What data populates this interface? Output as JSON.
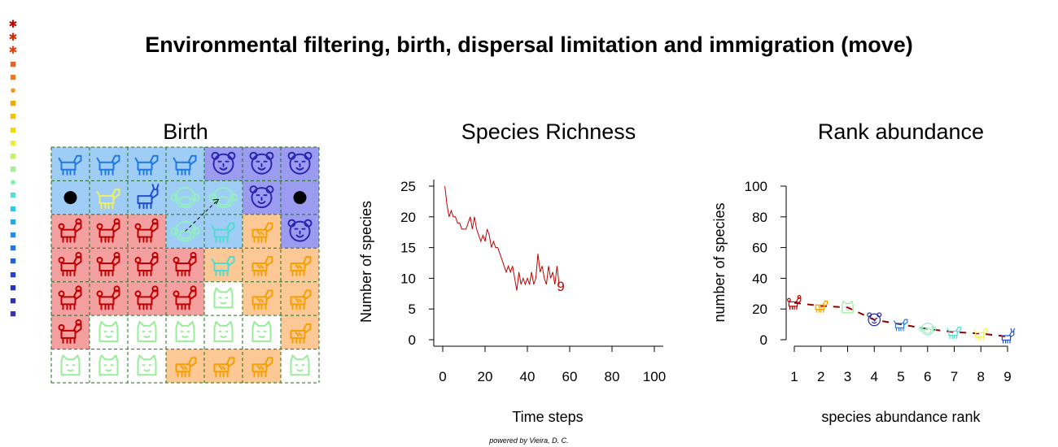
{
  "title": "Environmental filtering, birth, dispersal limitation and immigration (move)",
  "footer": "powered by Vieira, D. C.",
  "legend_strip": [
    {
      "glyph": "✱",
      "color": "#c00000",
      "icon": "poodle-icon"
    },
    {
      "glyph": "✱",
      "color": "#d42a00",
      "icon": "poodle-icon"
    },
    {
      "glyph": "✱",
      "color": "#e04010",
      "icon": "fox-icon"
    },
    {
      "glyph": "■",
      "color": "#ee6020",
      "icon": "tiger-icon"
    },
    {
      "glyph": "■",
      "color": "#f07a20",
      "icon": "tiger-icon"
    },
    {
      "glyph": "●",
      "color": "#f59a20",
      "icon": "monkey-icon"
    },
    {
      "glyph": "■",
      "color": "#f5a800",
      "icon": "cow-icon"
    },
    {
      "glyph": "■",
      "color": "#f7c000",
      "icon": "cat-icon"
    },
    {
      "glyph": "■",
      "color": "#f5d800",
      "icon": "rabbit-icon"
    },
    {
      "glyph": "■",
      "color": "#e8ee40",
      "icon": "dog-icon"
    },
    {
      "glyph": "■",
      "color": "#c8f060",
      "icon": "cat-icon"
    },
    {
      "glyph": "■",
      "color": "#a0f090",
      "icon": "cat-icon"
    },
    {
      "glyph": "●",
      "color": "#80f0b0",
      "icon": "monkey-icon"
    },
    {
      "glyph": "■",
      "color": "#50e0d0",
      "icon": "horse-icon"
    },
    {
      "glyph": "■",
      "color": "#30c8f0",
      "icon": "horse-icon"
    },
    {
      "glyph": "■",
      "color": "#20a8f0",
      "icon": "dog-icon"
    },
    {
      "glyph": "■",
      "color": "#2090f0",
      "icon": "wolf-icon"
    },
    {
      "glyph": "■",
      "color": "#1e78e8",
      "icon": "horse-icon"
    },
    {
      "glyph": "■",
      "color": "#2060e0",
      "icon": "horse-icon"
    },
    {
      "glyph": "■",
      "color": "#2840d0",
      "icon": "dog-icon"
    },
    {
      "glyph": "■",
      "color": "#2a30c0",
      "icon": "tiger-icon"
    },
    {
      "glyph": "■",
      "color": "#3030b0",
      "icon": "horse-icon"
    },
    {
      "glyph": "■",
      "color": "#3a30b0",
      "icon": "tiger-icon"
    }
  ],
  "grid": {
    "title": "Birth",
    "colors": {
      "blue": "#a0cdf5",
      "purple": "#9b9bef",
      "red": "#f5a0a0",
      "orange": "#fbc896",
      "white": "#ffffff",
      "border": "#1f6e1f"
    },
    "species_colors": {
      "horse": "#1f7ae0",
      "tiger": "#2828b0",
      "poodle": "#c00000",
      "cat": "#98ee98",
      "cow": "#f5a000",
      "dog": "#f0f060",
      "goat": "#2050d0",
      "monkey": "#90f0c0",
      "rabbit": "#50dcd0",
      "dot": "#000000"
    },
    "cells": [
      [
        {
          "bg": "blue",
          "sp": "horse"
        },
        {
          "bg": "blue",
          "sp": "horse"
        },
        {
          "bg": "blue",
          "sp": "horse"
        },
        {
          "bg": "blue",
          "sp": "horse"
        },
        {
          "bg": "purple",
          "sp": "tiger"
        },
        {
          "bg": "purple",
          "sp": "tiger"
        },
        {
          "bg": "purple",
          "sp": "tiger"
        }
      ],
      [
        {
          "bg": "blue",
          "sp": "dot"
        },
        {
          "bg": "blue",
          "sp": "dog"
        },
        {
          "bg": "blue",
          "sp": "goat"
        },
        {
          "bg": "blue",
          "sp": "monkey"
        },
        {
          "bg": "blue",
          "sp": "monkey"
        },
        {
          "bg": "purple",
          "sp": "tiger"
        },
        {
          "bg": "purple",
          "sp": "dot"
        }
      ],
      [
        {
          "bg": "red",
          "sp": "poodle"
        },
        {
          "bg": "red",
          "sp": "poodle"
        },
        {
          "bg": "red",
          "sp": "poodle"
        },
        {
          "bg": "blue",
          "sp": "monkey"
        },
        {
          "bg": "blue",
          "sp": "rabbit"
        },
        {
          "bg": "orange",
          "sp": "cow"
        },
        {
          "bg": "purple",
          "sp": "tiger"
        }
      ],
      [
        {
          "bg": "red",
          "sp": "poodle"
        },
        {
          "bg": "red",
          "sp": "poodle"
        },
        {
          "bg": "red",
          "sp": "poodle"
        },
        {
          "bg": "red",
          "sp": "poodle"
        },
        {
          "bg": "orange",
          "sp": "rabbit"
        },
        {
          "bg": "orange",
          "sp": "cow"
        },
        {
          "bg": "orange",
          "sp": "cow"
        }
      ],
      [
        {
          "bg": "red",
          "sp": "poodle"
        },
        {
          "bg": "red",
          "sp": "poodle"
        },
        {
          "bg": "red",
          "sp": "poodle"
        },
        {
          "bg": "red",
          "sp": "poodle"
        },
        {
          "bg": "white",
          "sp": "cat"
        },
        {
          "bg": "orange",
          "sp": "cow"
        },
        {
          "bg": "orange",
          "sp": "cow"
        }
      ],
      [
        {
          "bg": "red",
          "sp": "poodle"
        },
        {
          "bg": "white",
          "sp": "cat"
        },
        {
          "bg": "white",
          "sp": "cat"
        },
        {
          "bg": "white",
          "sp": "cat"
        },
        {
          "bg": "white",
          "sp": "cat"
        },
        {
          "bg": "white",
          "sp": "cat"
        },
        {
          "bg": "orange",
          "sp": "cow"
        }
      ],
      [
        {
          "bg": "white",
          "sp": "cat"
        },
        {
          "bg": "white",
          "sp": "cat"
        },
        {
          "bg": "white",
          "sp": "cat"
        },
        {
          "bg": "orange",
          "sp": "cow"
        },
        {
          "bg": "orange",
          "sp": "cow"
        },
        {
          "bg": "orange",
          "sp": "cow"
        },
        {
          "bg": "white",
          "sp": "cat"
        }
      ]
    ],
    "arrow": {
      "from": [
        2,
        3
      ],
      "to": [
        1,
        4
      ]
    }
  },
  "chart_data": [
    {
      "type": "line",
      "title": "Species Richness",
      "xlabel": "Time steps",
      "ylabel": "Number of species",
      "xlim": [
        0,
        100
      ],
      "ylim": [
        0,
        25
      ],
      "xticks": [
        "0",
        "20",
        "40",
        "60",
        "80",
        "100"
      ],
      "yticks": [
        "0",
        "5",
        "10",
        "15",
        "20",
        "25"
      ],
      "color": "#c00000",
      "x": [
        1,
        2,
        3,
        4,
        5,
        6,
        7,
        8,
        9,
        10,
        11,
        12,
        13,
        14,
        15,
        16,
        17,
        18,
        19,
        20,
        21,
        22,
        23,
        24,
        25,
        26,
        27,
        28,
        29,
        30,
        31,
        32,
        33,
        34,
        35,
        36,
        37,
        38,
        39,
        40,
        41,
        42,
        43,
        44,
        45,
        46,
        47,
        48,
        49,
        50,
        51,
        52,
        53,
        54,
        55
      ],
      "values": [
        25,
        22,
        20,
        21,
        20,
        20,
        19,
        19,
        18,
        18,
        18,
        19,
        20,
        18,
        20,
        18,
        17,
        16,
        17,
        16,
        18,
        17,
        15,
        16,
        15,
        15,
        14,
        13,
        12,
        11,
        12,
        11,
        12,
        10,
        8,
        11,
        9,
        10,
        9,
        10,
        9,
        11,
        9,
        10,
        14,
        11,
        12,
        10,
        9,
        12,
        10,
        11,
        9,
        12,
        9
      ],
      "end_label": "9"
    },
    {
      "type": "scatter",
      "title": "Rank abundance",
      "xlabel": "species abundance rank",
      "ylabel": "number of species",
      "xlim": [
        1,
        9
      ],
      "ylim": [
        0,
        100
      ],
      "xticks": [
        "1",
        "2",
        "3",
        "4",
        "5",
        "6",
        "7",
        "8",
        "9"
      ],
      "yticks": [
        "0",
        "20",
        "40",
        "60",
        "80",
        "100"
      ],
      "line_color": "#8b0000",
      "x": [
        1,
        2,
        3,
        4,
        5,
        6,
        7,
        8,
        9
      ],
      "values": [
        24,
        22,
        21,
        13,
        10,
        7,
        5,
        4,
        2
      ],
      "marker_icons": [
        "poodle-icon",
        "cow-icon",
        "cat-icon",
        "tiger-icon",
        "horse-icon",
        "monkey-icon",
        "rabbit-icon",
        "dog-icon",
        "goat-icon"
      ],
      "marker_colors": [
        "#c00000",
        "#f5a000",
        "#98ee98",
        "#2828b0",
        "#1f7ae0",
        "#90f0c0",
        "#50dcd0",
        "#f0f060",
        "#2050d0"
      ]
    }
  ]
}
